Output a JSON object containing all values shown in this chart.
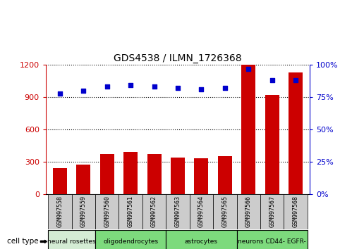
{
  "title": "GDS4538 / ILMN_1726368",
  "samples": [
    "GSM997558",
    "GSM997559",
    "GSM997560",
    "GSM997561",
    "GSM997562",
    "GSM997563",
    "GSM997564",
    "GSM997565",
    "GSM997566",
    "GSM997567",
    "GSM997568"
  ],
  "counts": [
    240,
    275,
    370,
    395,
    370,
    340,
    330,
    350,
    1200,
    920,
    1130
  ],
  "percentile_ranks": [
    78,
    80,
    83,
    84,
    83,
    82,
    81,
    82,
    97,
    88,
    88
  ],
  "cell_types": [
    {
      "label": "neural rosettes",
      "start": 0,
      "end": 2,
      "color": "#d4ecd4"
    },
    {
      "label": "oligodendrocytes",
      "start": 2,
      "end": 5,
      "color": "#7dda7d"
    },
    {
      "label": "astrocytes",
      "start": 5,
      "end": 8,
      "color": "#7dda7d"
    },
    {
      "label": "neurons CD44- EGFR-",
      "start": 8,
      "end": 11,
      "color": "#7dda7d"
    }
  ],
  "left_ylim": [
    0,
    1200
  ],
  "left_yticks": [
    0,
    300,
    600,
    900,
    1200
  ],
  "right_ylim": [
    0,
    100
  ],
  "right_yticks": [
    0,
    25,
    50,
    75,
    100
  ],
  "bar_color": "#cc0000",
  "dot_color": "#0000cc",
  "bg_color": "#ffffff",
  "plot_bg": "#ffffff",
  "grid_color": "#000000",
  "tick_label_color_left": "#cc0000",
  "tick_label_color_right": "#0000cc",
  "legend_count_color": "#cc0000",
  "legend_pct_color": "#0000cc",
  "sample_box_color": "#cccccc"
}
